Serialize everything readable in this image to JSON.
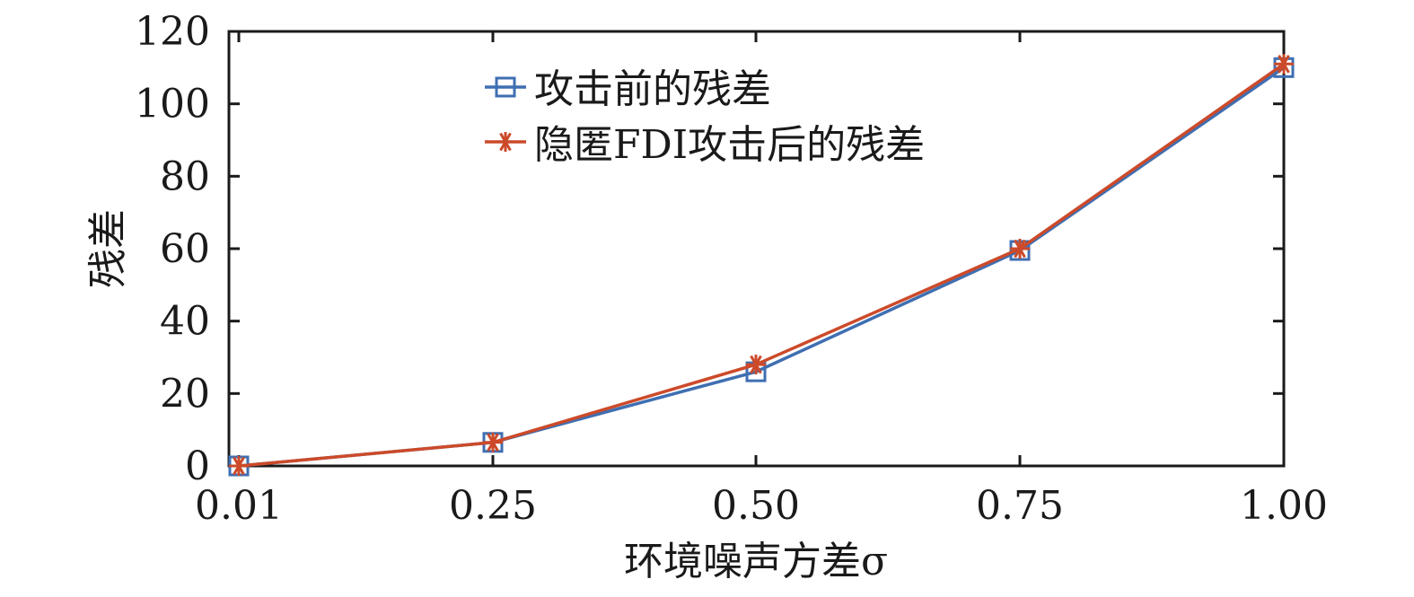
{
  "chart_data": {
    "type": "line",
    "xlabel": "环境噪声方差σ",
    "ylabel": "残差",
    "x": [
      0.01,
      0.25,
      0.5,
      0.75,
      1.0
    ],
    "x_tick_labels": [
      "0.01",
      "0.25",
      "0.50",
      "0.75",
      "1.00"
    ],
    "y_ticks": [
      0,
      20,
      40,
      60,
      80,
      100,
      120
    ],
    "y_tick_labels": [
      "0",
      "20",
      "40",
      "60",
      "80",
      "100",
      "120"
    ],
    "ylim": [
      0,
      120
    ],
    "grid": false,
    "legend_position": "top-center",
    "series": [
      {
        "name": "攻击前的残差",
        "marker": "square",
        "color": "#3f6fb2",
        "values": [
          0,
          6.5,
          26,
          59.5,
          110
        ]
      },
      {
        "name": "隐匿FDI攻击后的残差",
        "marker": "asterisk",
        "color": "#cc4a2a",
        "values": [
          0,
          6.5,
          28,
          60,
          111
        ]
      }
    ]
  }
}
